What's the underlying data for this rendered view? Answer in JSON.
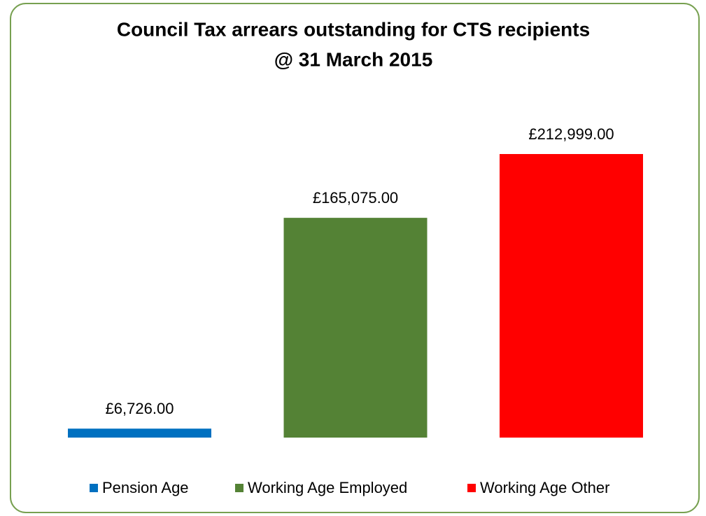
{
  "chart_data": {
    "type": "bar",
    "title": [
      "Council Tax arrears outstanding for CTS recipients",
      "@ 31 March 2015"
    ],
    "series": [
      {
        "name": "Pension Age",
        "color": "#0070c0",
        "values": [
          6726
        ],
        "value_labels": [
          "£6,726.00"
        ]
      },
      {
        "name": "Working Age Employed",
        "color": "#548235",
        "values": [
          165075
        ],
        "value_labels": [
          "£165,075.00"
        ]
      },
      {
        "name": "Working Age Other",
        "color": "#ff0000",
        "values": [
          212999
        ],
        "value_labels": [
          "£212,999.00"
        ]
      }
    ],
    "legend": "bottom"
  }
}
